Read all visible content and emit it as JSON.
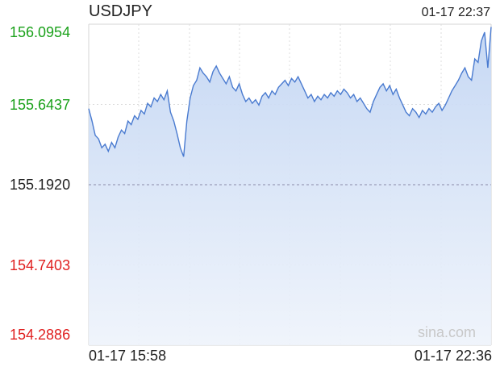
{
  "header": {
    "symbol": "USDJPY",
    "timestamp": "01-17 22:37"
  },
  "watermark": "sina.com",
  "colors": {
    "up": "#1aa11a",
    "down": "#e02020",
    "neutral": "#222222",
    "line": "#4a7bd0"
  },
  "chart_data": {
    "type": "area",
    "ylim": [
      154.2886,
      156.0954
    ],
    "baseline": 155.192,
    "y_ticks": [
      {
        "label": "156.0954",
        "value": 156.0954,
        "color": "up"
      },
      {
        "label": "155.6437",
        "value": 155.6437,
        "color": "up"
      },
      {
        "label": "155.1920",
        "value": 155.192,
        "color": "neutral"
      },
      {
        "label": "154.7403",
        "value": 154.7403,
        "color": "down"
      },
      {
        "label": "154.2886",
        "value": 154.2886,
        "color": "down"
      }
    ],
    "x_labels": [
      "01-17 15:58",
      "01-17 22:36"
    ],
    "grid": true,
    "series": [
      {
        "values": [
          155.62,
          155.55,
          155.47,
          155.45,
          155.4,
          155.42,
          155.38,
          155.43,
          155.4,
          155.46,
          155.5,
          155.48,
          155.55,
          155.53,
          155.58,
          155.56,
          155.61,
          155.59,
          155.65,
          155.63,
          155.68,
          155.66,
          155.7,
          155.67,
          155.72,
          155.6,
          155.55,
          155.48,
          155.4,
          155.35,
          155.55,
          155.68,
          155.75,
          155.78,
          155.85,
          155.82,
          155.8,
          155.77,
          155.83,
          155.86,
          155.82,
          155.79,
          155.76,
          155.8,
          155.74,
          155.72,
          155.76,
          155.7,
          155.66,
          155.68,
          155.65,
          155.67,
          155.64,
          155.69,
          155.71,
          155.68,
          155.72,
          155.7,
          155.74,
          155.76,
          155.78,
          155.75,
          155.79,
          155.77,
          155.8,
          155.76,
          155.72,
          155.68,
          155.7,
          155.66,
          155.69,
          155.67,
          155.7,
          155.68,
          155.71,
          155.69,
          155.72,
          155.7,
          155.73,
          155.71,
          155.68,
          155.7,
          155.66,
          155.68,
          155.65,
          155.62,
          155.6,
          155.66,
          155.7,
          155.74,
          155.76,
          155.72,
          155.75,
          155.7,
          155.73,
          155.68,
          155.64,
          155.6,
          155.58,
          155.62,
          155.6,
          155.57,
          155.61,
          155.59,
          155.62,
          155.6,
          155.63,
          155.65,
          155.61,
          155.64,
          155.68,
          155.72,
          155.75,
          155.78,
          155.82,
          155.85,
          155.8,
          155.78,
          155.9,
          155.88,
          156.0,
          156.05,
          155.85,
          156.08
        ]
      }
    ]
  }
}
